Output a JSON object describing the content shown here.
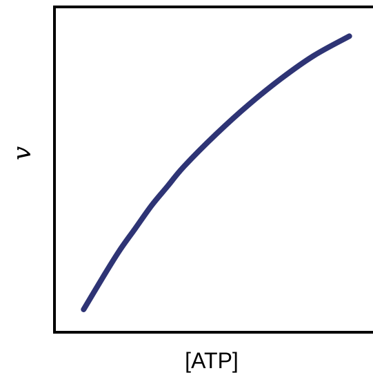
{
  "chart_data": {
    "type": "line",
    "title": "",
    "xlabel": "[ATP]",
    "ylabel": "v",
    "ticks": "none",
    "grid": false,
    "legend": "none",
    "line_color": "#2e3475",
    "axis_color": "#000000",
    "series": [
      {
        "x": [
          0.09,
          0.15,
          0.2,
          0.25,
          0.3,
          0.35,
          0.4,
          0.5,
          0.6,
          0.7,
          0.8,
          0.91
        ],
        "y": [
          0.07,
          0.17,
          0.25,
          0.32,
          0.39,
          0.45,
          0.51,
          0.61,
          0.7,
          0.78,
          0.85,
          0.91
        ]
      }
    ],
    "xlim": [
      0,
      1
    ],
    "ylim": [
      0,
      1
    ]
  }
}
